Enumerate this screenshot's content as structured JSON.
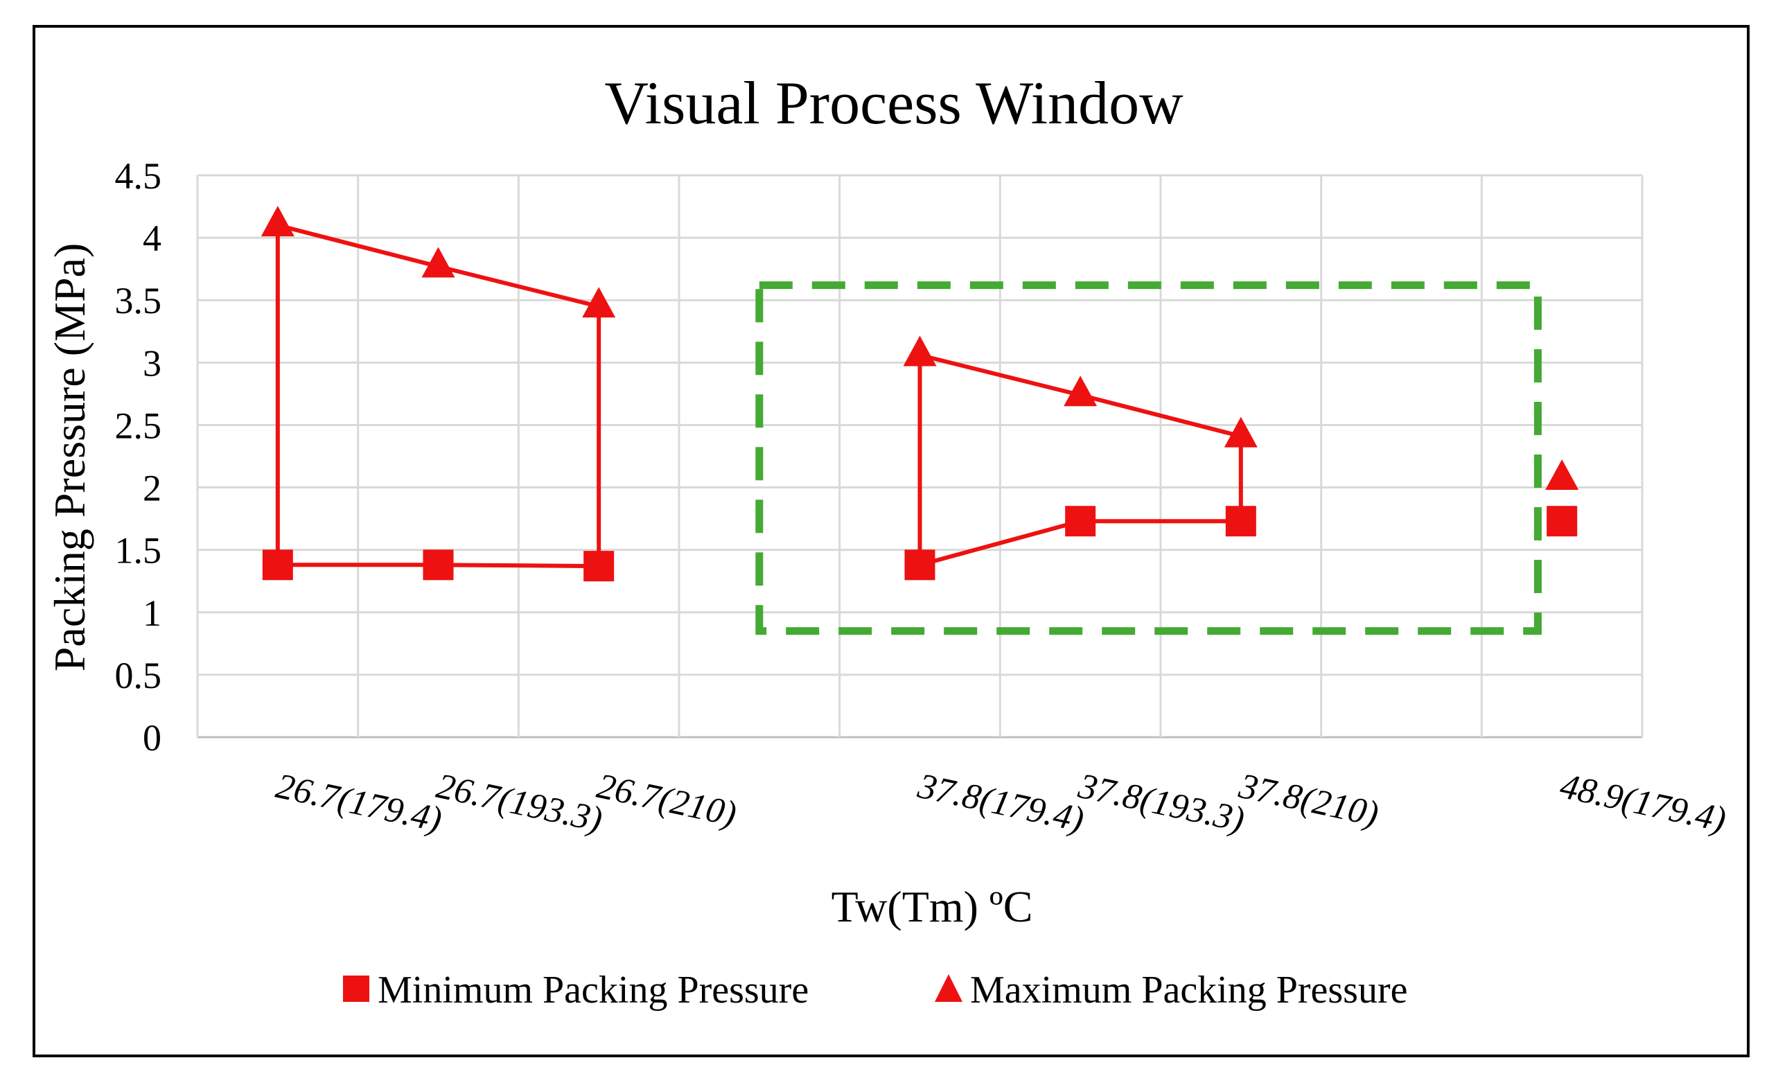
{
  "chart_data": {
    "type": "line",
    "title": "Visual Process Window",
    "xlabel": "Tw(Tm) ºC",
    "ylabel": "Packing Pressure (MPa)",
    "categories": [
      "26.7(179.4)",
      "26.7(193.3)",
      "26.7(210)",
      "",
      "37.8(179.4)",
      "37.8(193.3)",
      "37.8(210)",
      "",
      "48.9(179.4)"
    ],
    "ylim": [
      0,
      4.5
    ],
    "yticks": [
      "0",
      "0.5",
      "1",
      "1.5",
      "2",
      "2.5",
      "3",
      "3.5",
      "4",
      "4.5"
    ],
    "grid": true,
    "legend_position": "bottom",
    "series": [
      {
        "name": "Minimum Packing Pressure",
        "marker": "square",
        "color": "#ee1111",
        "values": [
          1.38,
          1.38,
          1.37,
          null,
          1.38,
          1.73,
          1.73,
          null,
          1.73
        ]
      },
      {
        "name": "Maximum Packing Pressure",
        "marker": "triangle",
        "color": "#ee1111",
        "values": [
          4.1,
          3.77,
          3.45,
          null,
          3.06,
          2.74,
          2.41,
          null,
          2.07
        ]
      }
    ],
    "window_groups": [
      {
        "start": 0,
        "end": 2
      },
      {
        "start": 4,
        "end": 6
      }
    ],
    "highlight_box": {
      "style": "dashed",
      "color": "#44aa33",
      "x_range": [
        3.5,
        8.35
      ],
      "y_range": [
        0.85,
        3.62
      ]
    }
  }
}
